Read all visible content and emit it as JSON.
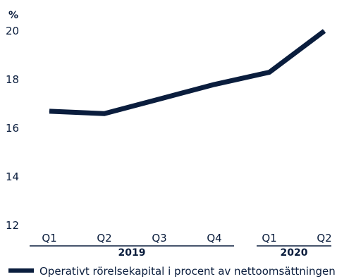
{
  "chart_data": {
    "type": "line",
    "y_unit": "%",
    "categories": [
      "Q1",
      "Q2",
      "Q3",
      "Q4",
      "Q1",
      "Q2"
    ],
    "groups": [
      {
        "label": "2019",
        "categories": [
          "Q1",
          "Q2",
          "Q3",
          "Q4"
        ]
      },
      {
        "label": "2020",
        "categories": [
          "Q1",
          "Q2"
        ]
      }
    ],
    "series": [
      {
        "name": "Operativt rörelsekapital i procent av nettoomsättningen",
        "values": [
          16.7,
          16.6,
          17.2,
          17.8,
          18.3,
          20.0
        ],
        "color": "#0a1d3d"
      }
    ],
    "ylim": [
      12,
      20
    ],
    "y_ticks": [
      "20",
      "18",
      "16",
      "14",
      "12"
    ],
    "grid": false,
    "legend_position": "bottom-left"
  }
}
